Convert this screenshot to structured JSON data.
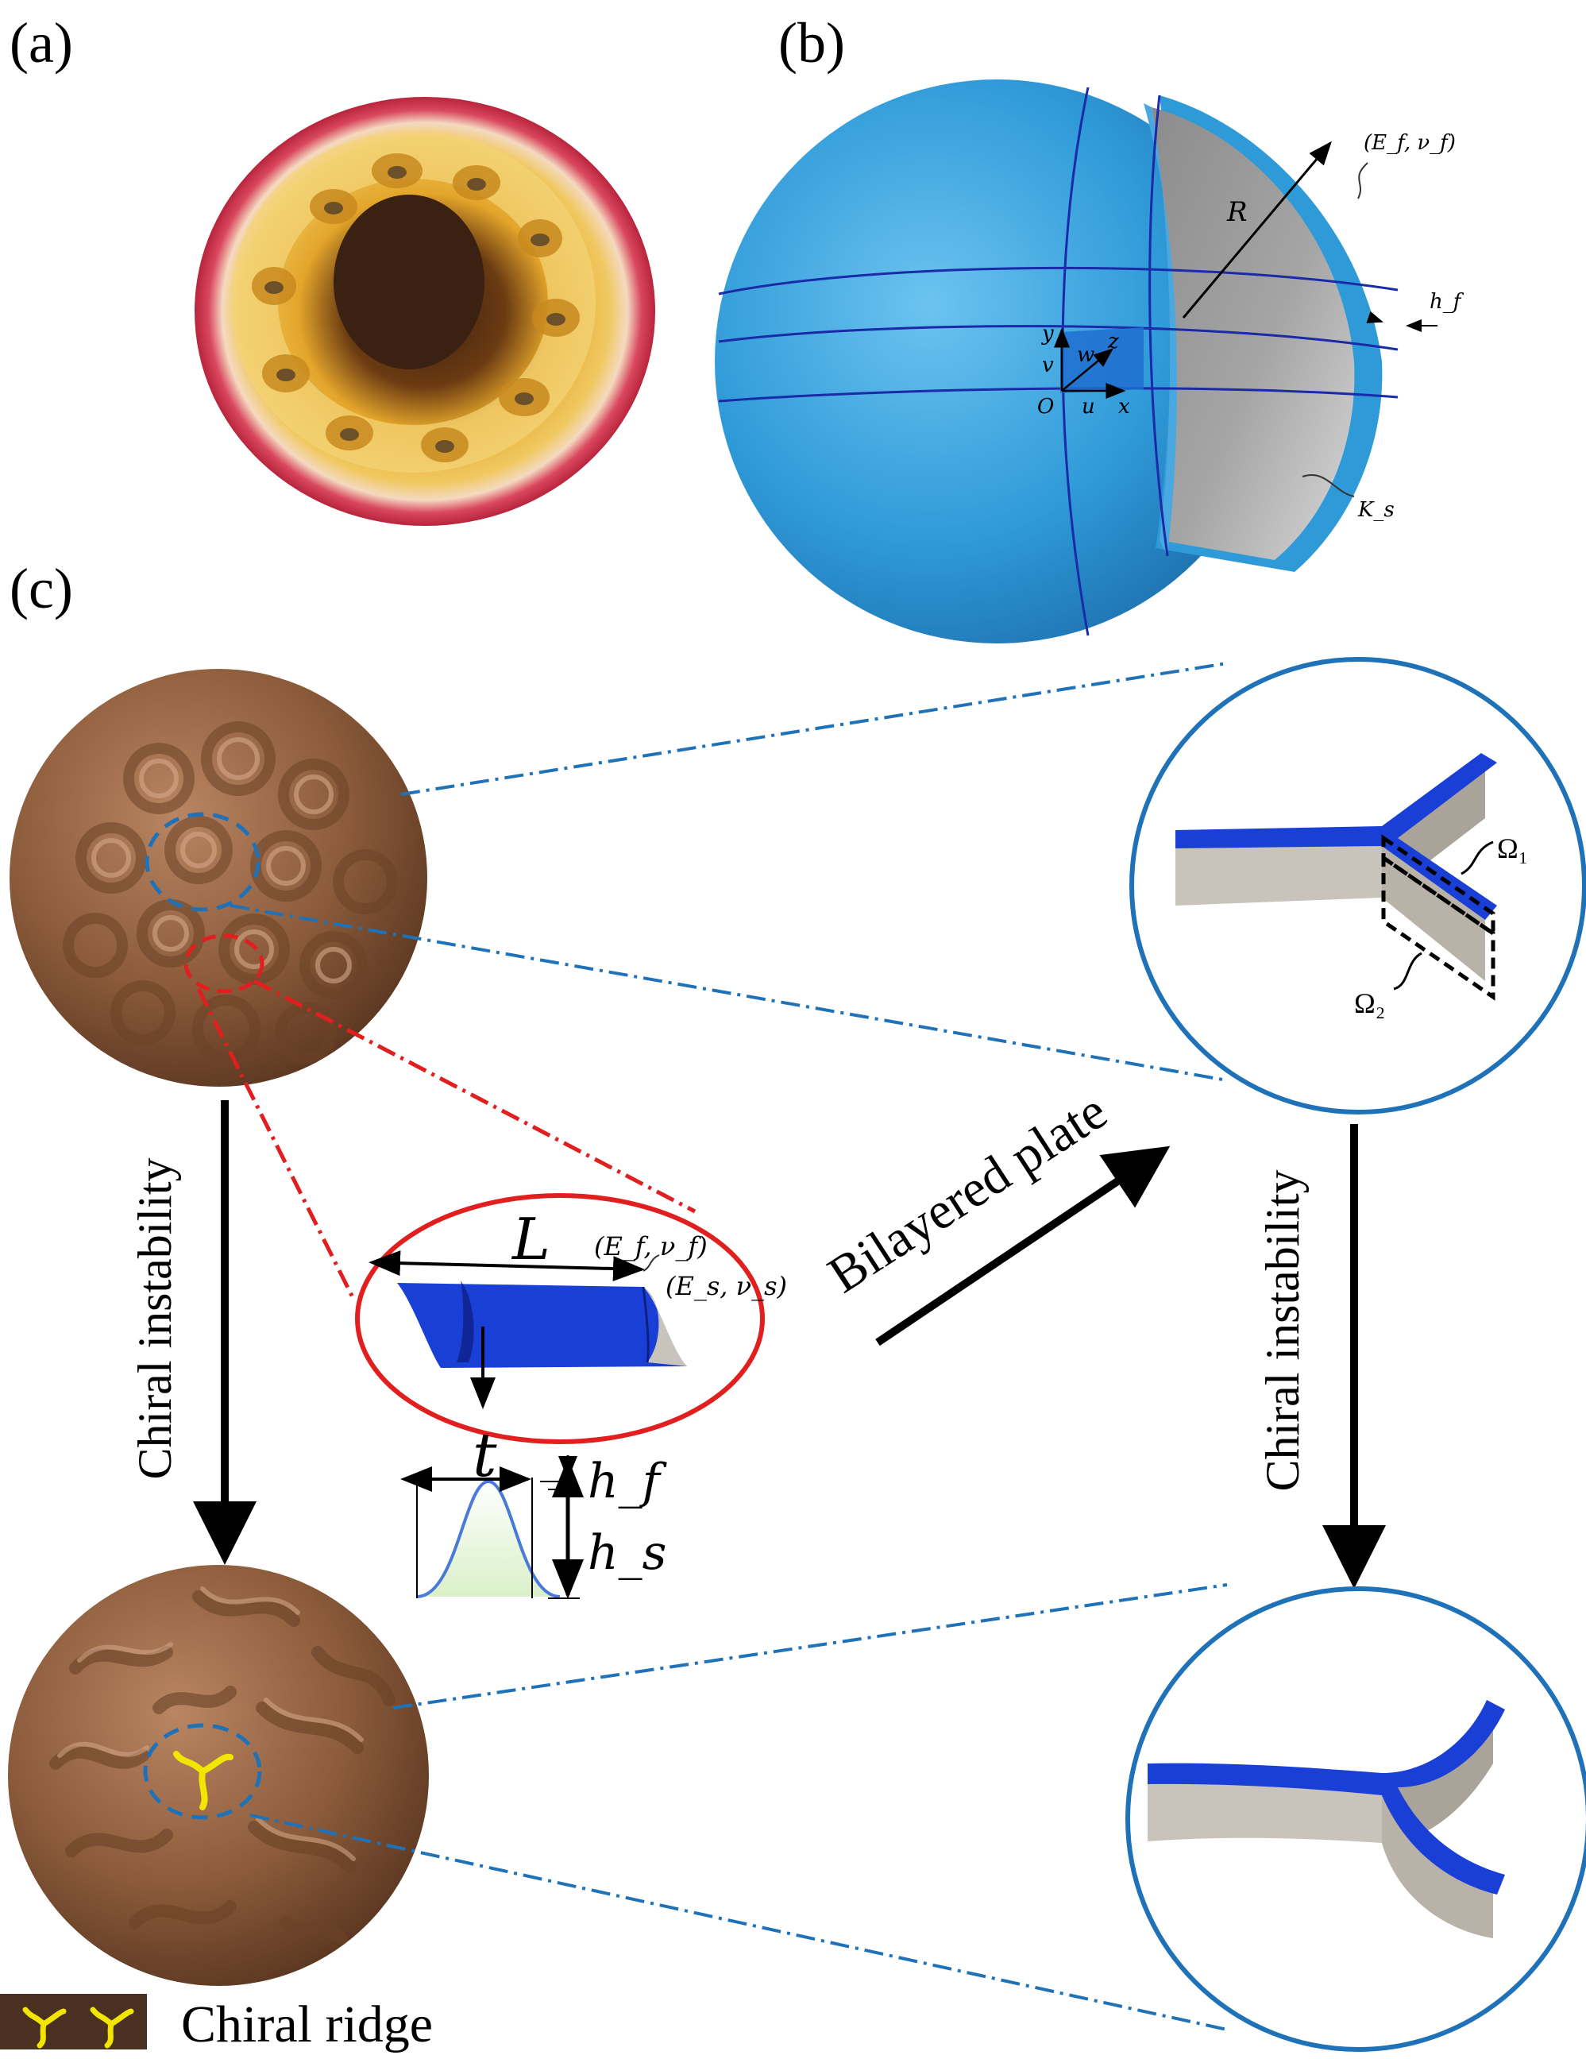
{
  "panels": {
    "a": {
      "label": "(a)"
    },
    "b": {
      "label": "(b)"
    },
    "c": {
      "label": "(c)"
    }
  },
  "sphere_model": {
    "film_props": "(E_f, ν_f)",
    "radius": "R",
    "film_thickness": "h_f",
    "axis_y": "y",
    "axis_v": "v",
    "axis_w": "w",
    "axis_z": "z",
    "origin": "O",
    "axis_u": "u",
    "axis_x": "x",
    "foundation": "K_s"
  },
  "ridge_inset": {
    "length": "L",
    "film_props": "(E_f, ν_f)",
    "substrate_props": "(E_s, ν_s)",
    "width": "t",
    "film_h": "h_f",
    "substrate_h": "h_s"
  },
  "plate_zoom": {
    "region1": "Ω₁",
    "region2": "Ω₂"
  },
  "arrows": {
    "left": "Chiral instability",
    "right": "Chiral instability",
    "diagonal": "Bilayered plate"
  },
  "legend": {
    "label": "Chiral ridge"
  },
  "colors": {
    "shell_blue": "#2f9ad8",
    "core_gray": "#9a9a9a",
    "film_blue": "#1a3fd6",
    "substrate_gray": "#c9c4bb",
    "sphere_brown": "#8a5a3a",
    "zoom_circle": "#1f72b8",
    "red_dash": "#e11f1f",
    "ridge_yellow": "#f2e600"
  }
}
